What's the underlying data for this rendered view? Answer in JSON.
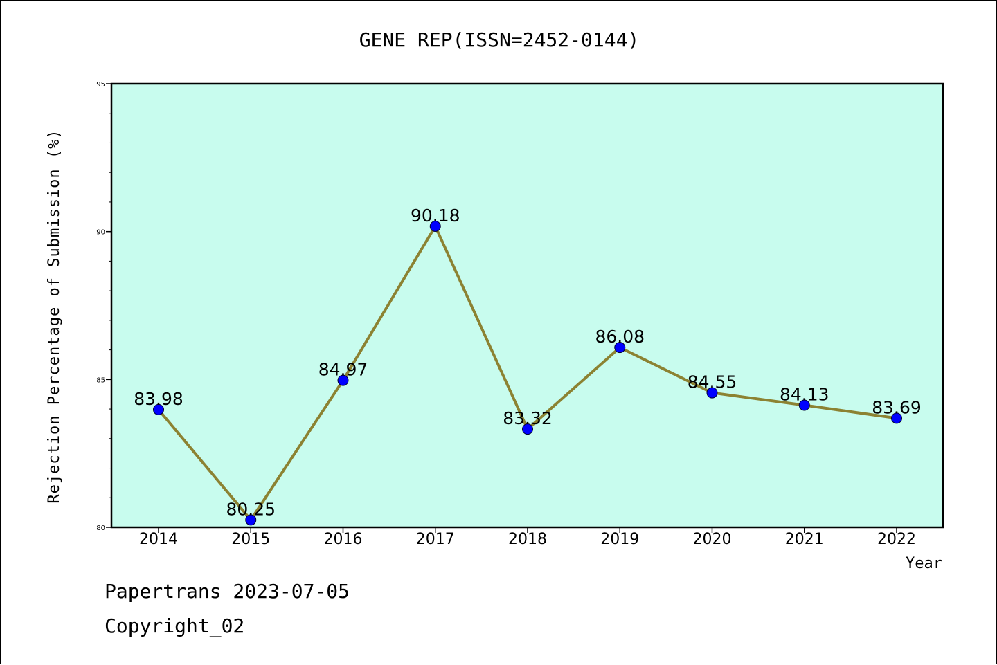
{
  "chart_data": {
    "type": "line",
    "title": "GENE REP(ISSN=2452-0144)",
    "xlabel": "Year",
    "ylabel": "Rejection Percentage of Submission (%)",
    "x": [
      "2014",
      "2015",
      "2016",
      "2017",
      "2018",
      "2019",
      "2020",
      "2021",
      "2022"
    ],
    "values": [
      83.98,
      80.25,
      84.97,
      90.18,
      83.32,
      86.08,
      84.55,
      84.13,
      83.69
    ],
    "data_labels": [
      "83.98",
      "80.25",
      "84.97",
      "90.18",
      "83.32",
      "86.08",
      "84.55",
      "84.13",
      "83.69"
    ],
    "ylim": [
      80,
      95
    ],
    "yticks": [
      80,
      85,
      90,
      95
    ],
    "grid": false,
    "legend": "none",
    "colors": {
      "plot_background": "#c8fcee",
      "line": "#8c8232",
      "marker": "#0000ff"
    }
  },
  "footer": {
    "line1": "Papertrans 2023-07-05",
    "line2": "Copyright_02"
  }
}
